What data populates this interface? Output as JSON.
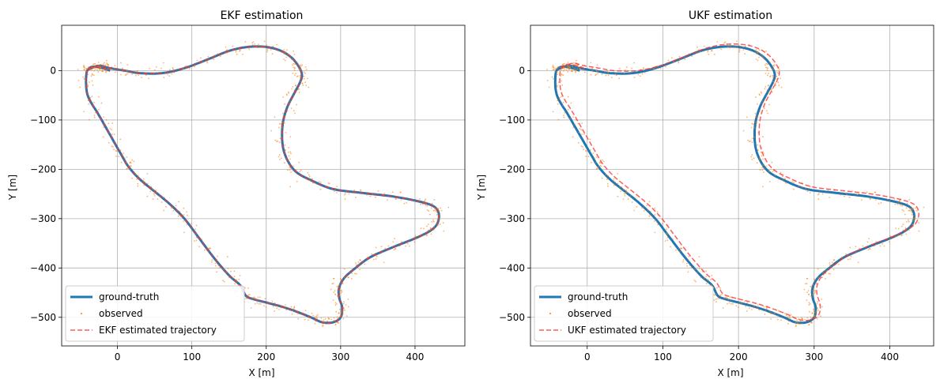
{
  "colors": {
    "ground_truth": "#1f77b4",
    "observed": "#ff7f0e",
    "estimate": "#ff3333",
    "grid": "#b0b0b0"
  },
  "chart_data": [
    {
      "type": "line",
      "title": "EKF estimation",
      "xlabel": "X [m]",
      "ylabel": "Y [m]",
      "xlim": [
        -75,
        467
      ],
      "ylim": [
        -558,
        92
      ],
      "xticks": [
        0,
        100,
        200,
        300,
        400
      ],
      "yticks": [
        0,
        -100,
        -200,
        -300,
        -400,
        -500
      ],
      "grid": true,
      "legend_position": "lower-left",
      "estimate_offset": [
        0,
        0
      ],
      "series": [
        {
          "name": "ground-truth",
          "style": "solid-thick"
        },
        {
          "name": "observed",
          "style": "points"
        },
        {
          "name": "EKF estimated trajectory",
          "style": "dashed"
        }
      ]
    },
    {
      "type": "line",
      "title": "UKF estimation",
      "xlabel": "X [m]",
      "ylabel": "Y [m]",
      "xlim": [
        -75,
        458
      ],
      "ylim": [
        -558,
        92
      ],
      "xticks": [
        0,
        100,
        200,
        300,
        400
      ],
      "yticks": [
        0,
        -100,
        -200,
        -300,
        -400,
        -500
      ],
      "grid": true,
      "legend_position": "lower-left",
      "estimate_offset": [
        6,
        5
      ],
      "series": [
        {
          "name": "ground-truth",
          "style": "solid-thick"
        },
        {
          "name": "observed",
          "style": "points"
        },
        {
          "name": "UKF estimated trajectory",
          "style": "dashed"
        }
      ]
    }
  ],
  "trajectory": {
    "x": [
      -40,
      -25,
      -10,
      10,
      30,
      60,
      90,
      120,
      150,
      175,
      200,
      220,
      235,
      245,
      248,
      245,
      238,
      228,
      222,
      222,
      228,
      240,
      260,
      290,
      330,
      370,
      405,
      425,
      432,
      430,
      420,
      400,
      370,
      340,
      320,
      305,
      298,
      298,
      302,
      300,
      290,
      275,
      260,
      240,
      220,
      200,
      180,
      172,
      165,
      150,
      130,
      110,
      90,
      70,
      50,
      30,
      15,
      5,
      -10,
      -25,
      -40,
      -42,
      -38,
      -30,
      -20,
      -10
    ],
    "y": [
      2,
      10,
      5,
      0,
      -5,
      -5,
      5,
      22,
      40,
      48,
      48,
      40,
      25,
      5,
      -10,
      -25,
      -45,
      -75,
      -110,
      -150,
      -180,
      -205,
      -222,
      -240,
      -248,
      -255,
      -265,
      -275,
      -290,
      -310,
      -325,
      -340,
      -358,
      -378,
      -400,
      -420,
      -440,
      -460,
      -480,
      -500,
      -510,
      -510,
      -500,
      -488,
      -478,
      -470,
      -462,
      -455,
      -435,
      -415,
      -380,
      -340,
      -300,
      -270,
      -245,
      -220,
      -195,
      -170,
      -130,
      -90,
      -50,
      -10,
      5,
      8,
      5,
      0
    ]
  }
}
